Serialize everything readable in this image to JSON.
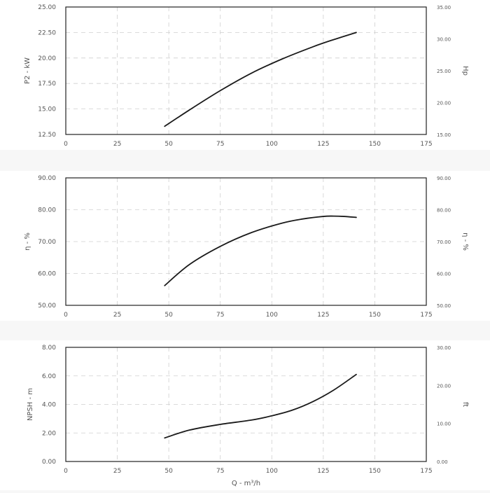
{
  "chart_data": [
    {
      "type": "line",
      "xlabel": "",
      "ylabel": "P2 - kW",
      "y2label": "Hp",
      "xlim": [
        0,
        175
      ],
      "ylim": [
        12.5,
        25.0
      ],
      "y2lim": [
        15.0,
        35.0
      ],
      "xticks": [
        "0",
        "25",
        "50",
        "75",
        "100",
        "125",
        "150",
        "175"
      ],
      "yticks": [
        "12.50",
        "15.00",
        "17.50",
        "20.00",
        "22.50",
        "25.00"
      ],
      "y2ticks": [
        "15.00",
        "20.00",
        "25.00",
        "30.00",
        "35.00"
      ],
      "grid": true,
      "series": [
        {
          "x": [
            48,
            60,
            75,
            90,
            105,
            120,
            130,
            141
          ],
          "y": [
            13.3,
            14.9,
            16.8,
            18.5,
            19.9,
            21.1,
            21.8,
            22.5
          ]
        }
      ]
    },
    {
      "type": "line",
      "xlabel": "",
      "ylabel": "η - %",
      "y2label": "η - %",
      "xlim": [
        0,
        175
      ],
      "ylim": [
        50.0,
        90.0
      ],
      "y2lim": [
        50.0,
        90.0
      ],
      "xticks": [
        "0",
        "25",
        "50",
        "75",
        "100",
        "125",
        "150",
        "175"
      ],
      "yticks": [
        "50.00",
        "60.00",
        "70.00",
        "80.00",
        "90.00"
      ],
      "y2ticks": [
        "50.00",
        "60.00",
        "70.00",
        "80.00",
        "90.00"
      ],
      "grid": true,
      "series": [
        {
          "x": [
            48,
            60,
            75,
            90,
            105,
            115,
            125,
            130,
            135,
            141
          ],
          "y": [
            56.2,
            62.8,
            68.5,
            72.8,
            75.8,
            77.1,
            77.9,
            78.0,
            77.9,
            77.6
          ]
        }
      ]
    },
    {
      "type": "line",
      "xlabel": "Q - m³/h",
      "ylabel": "NPSH - m",
      "y2label": "ft",
      "xlim": [
        0,
        175
      ],
      "ylim": [
        0.0,
        8.0
      ],
      "y2lim": [
        0.0,
        30.0
      ],
      "xticks": [
        "0",
        "25",
        "50",
        "75",
        "100",
        "125",
        "150",
        "175"
      ],
      "yticks": [
        "0.00",
        "2.00",
        "4.00",
        "6.00",
        "8.00"
      ],
      "y2ticks": [
        "0.00",
        "10.00",
        "20.00",
        "30.00"
      ],
      "grid": true,
      "series": [
        {
          "x": [
            48,
            60,
            75,
            90,
            100,
            110,
            120,
            130,
            141
          ],
          "y": [
            1.65,
            2.2,
            2.6,
            2.9,
            3.2,
            3.6,
            4.2,
            5.0,
            6.1
          ]
        }
      ]
    }
  ]
}
